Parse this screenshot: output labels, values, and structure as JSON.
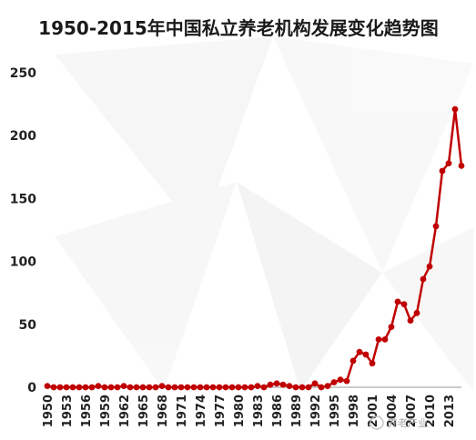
{
  "chart_data": {
    "type": "line",
    "title": "1950-2015年中国私立养老机构发展变化趋势图",
    "xlabel": "",
    "ylabel": "",
    "ylim": [
      0,
      250
    ],
    "yticks": [
      0,
      50,
      100,
      150,
      200,
      250
    ],
    "xlim": [
      1950,
      2015
    ],
    "xticks": [
      1950,
      1953,
      1956,
      1959,
      1962,
      1965,
      1968,
      1971,
      1974,
      1977,
      1980,
      1983,
      1986,
      1989,
      1992,
      1995,
      1998,
      2001,
      2004,
      2007,
      2010,
      2013
    ],
    "grid": false,
    "colors": {
      "series": "#c00000",
      "axis": "#999999"
    },
    "x": [
      1950,
      1951,
      1952,
      1953,
      1954,
      1955,
      1956,
      1957,
      1958,
      1959,
      1960,
      1961,
      1962,
      1963,
      1964,
      1965,
      1966,
      1967,
      1968,
      1969,
      1970,
      1971,
      1972,
      1973,
      1974,
      1975,
      1976,
      1977,
      1978,
      1979,
      1980,
      1981,
      1982,
      1983,
      1984,
      1985,
      1986,
      1987,
      1988,
      1989,
      1990,
      1991,
      1992,
      1993,
      1994,
      1995,
      1996,
      1997,
      1998,
      1999,
      2000,
      2001,
      2002,
      2003,
      2004,
      2005,
      2006,
      2007,
      2008,
      2009,
      2010,
      2011,
      2012,
      2013,
      2014,
      2015
    ],
    "y": [
      1,
      0,
      0,
      0,
      0,
      0,
      0,
      0,
      1,
      0,
      0,
      0,
      1,
      0,
      0,
      0,
      0,
      0,
      1,
      0,
      0,
      0,
      0,
      0,
      0,
      0,
      0,
      0,
      0,
      0,
      0,
      0,
      0,
      1,
      0,
      2,
      3,
      2,
      1,
      0,
      0,
      0,
      3,
      0,
      1,
      4,
      6,
      5,
      21,
      28,
      26,
      19,
      38,
      38,
      48,
      68,
      66,
      53,
      59,
      86,
      96,
      128,
      172,
      178,
      221,
      176
    ]
  },
  "watermark": {
    "text": "养老产业"
  }
}
